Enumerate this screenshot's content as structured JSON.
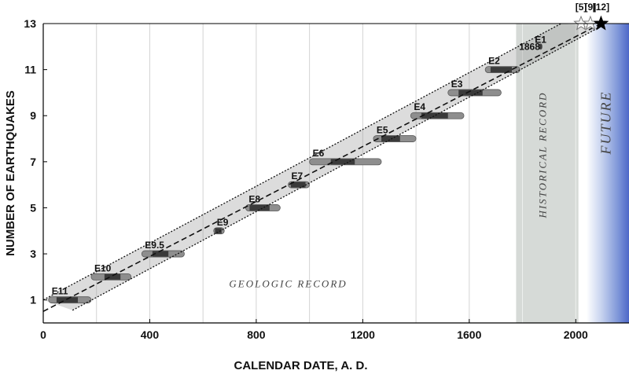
{
  "chart_data": {
    "type": "scatter",
    "xlabel": "CALENDAR DATE, A. D.",
    "ylabel": "NUMBER OF EARTHQUAKES",
    "xlim": [
      0,
      2200
    ],
    "ylim": [
      0,
      13
    ],
    "x_ticks": [
      0,
      400,
      800,
      1200,
      1600,
      2000
    ],
    "y_ticks": [
      1,
      3,
      5,
      7,
      9,
      11,
      13
    ],
    "grid": "vertical every 200 years",
    "regions": {
      "geologic": "GEOLOGIC RECORD",
      "historical": "HISTORICAL RECORD",
      "future": "FUTURE",
      "historical_range": [
        1776,
        2010
      ],
      "future_start": 2040
    },
    "events": [
      {
        "label": "E11",
        "count": 1,
        "range": [
          20,
          180
        ],
        "best": [
          50,
          130
        ]
      },
      {
        "label": "E10",
        "count": 2,
        "range": [
          180,
          330
        ],
        "best": [
          230,
          290
        ]
      },
      {
        "label": "E9.5",
        "count": 3,
        "range": [
          370,
          530
        ],
        "best": [
          410,
          470
        ]
      },
      {
        "label": "E9",
        "count": 4,
        "range": [
          640,
          680
        ],
        "best": [
          645,
          670
        ]
      },
      {
        "label": "E8",
        "count": 5,
        "range": [
          760,
          890
        ],
        "best": [
          775,
          850
        ]
      },
      {
        "label": "E7",
        "count": 6,
        "range": [
          920,
          1000
        ],
        "best": [
          930,
          985
        ]
      },
      {
        "label": "E6",
        "count": 7,
        "range": [
          1000,
          1270
        ],
        "best": [
          1080,
          1170
        ]
      },
      {
        "label": "E5",
        "count": 8,
        "range": [
          1240,
          1400
        ],
        "best": [
          1270,
          1340
        ]
      },
      {
        "label": "E4",
        "count": 9,
        "range": [
          1380,
          1580
        ],
        "best": [
          1420,
          1520
        ]
      },
      {
        "label": "E3",
        "count": 10,
        "range": [
          1520,
          1720
        ],
        "best": [
          1560,
          1650
        ]
      },
      {
        "label": "E2",
        "count": 11,
        "range": [
          1660,
          1790
        ],
        "best": [
          1680,
          1760
        ]
      },
      {
        "label": "E1",
        "count": 12,
        "range": [
          1862,
          1874
        ],
        "best": [
          1864,
          1872
        ],
        "year_label": "1868"
      }
    ],
    "forecasts": [
      {
        "label": "[5]",
        "x": 2020,
        "y": 13,
        "style": "open-star"
      },
      {
        "label": "[9]",
        "x": 2055,
        "y": 13,
        "style": "open-star"
      },
      {
        "label": "[12]",
        "x": 2095,
        "y": 13,
        "style": "filled-star"
      }
    ],
    "trend": {
      "central": [
        [
          0,
          0.5
        ],
        [
          2095,
          13
        ]
      ],
      "upper": [
        [
          0,
          1.0
        ],
        [
          1945,
          13
        ]
      ],
      "lower": [
        [
          110,
          0.55
        ],
        [
          2090,
          12.85
        ]
      ]
    }
  }
}
